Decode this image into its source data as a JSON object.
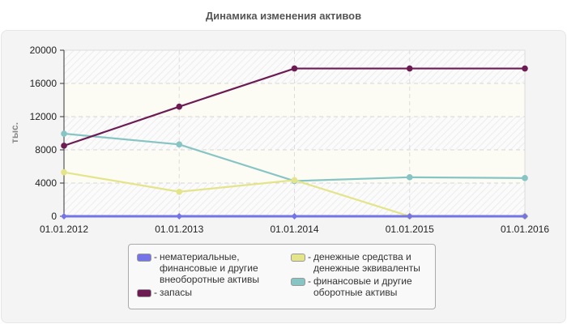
{
  "title": "Динамика изменения активов",
  "chart_data": {
    "type": "line",
    "title": "Динамика изменения активов",
    "xlabel": "",
    "ylabel": "тыс.",
    "ylim": [
      0,
      20000
    ],
    "yticks": [
      "0",
      "4000",
      "8000",
      "12000",
      "16000",
      "20000"
    ],
    "x": [
      "01.01.2012",
      "01.01.2013",
      "01.01.2014",
      "01.01.2015",
      "01.01.2016"
    ],
    "grid": true,
    "legend_position": "bottom",
    "series": [
      {
        "name": "нематериальные, финансовые и другие внеоборотные активы",
        "color": "#7474e6",
        "values": [
          0,
          0,
          0,
          0,
          0
        ]
      },
      {
        "name": "запасы",
        "color": "#6d1b53",
        "values": [
          8500,
          13200,
          17800,
          17800,
          17800
        ]
      },
      {
        "name": "денежные средства и денежные эквиваленты",
        "color": "#e4e48a",
        "values": [
          5300,
          2950,
          4350,
          0,
          0
        ]
      },
      {
        "name": "финансовые и другие оборотные активы",
        "color": "#86c5c3",
        "values": [
          9950,
          8650,
          4250,
          4700,
          4600
        ]
      }
    ]
  },
  "legend": {
    "items": [
      {
        "label": "нематериальные,\nфинансовые и другие\nвнеоборотные активы",
        "color": "#7474e6"
      },
      {
        "label": "запасы",
        "color": "#6d1b53"
      },
      {
        "label": "денежные средства и\nденежные эквиваленты",
        "color": "#e4e48a"
      },
      {
        "label": "финансовые и другие\nоборотные активы",
        "color": "#86c5c3"
      }
    ]
  }
}
